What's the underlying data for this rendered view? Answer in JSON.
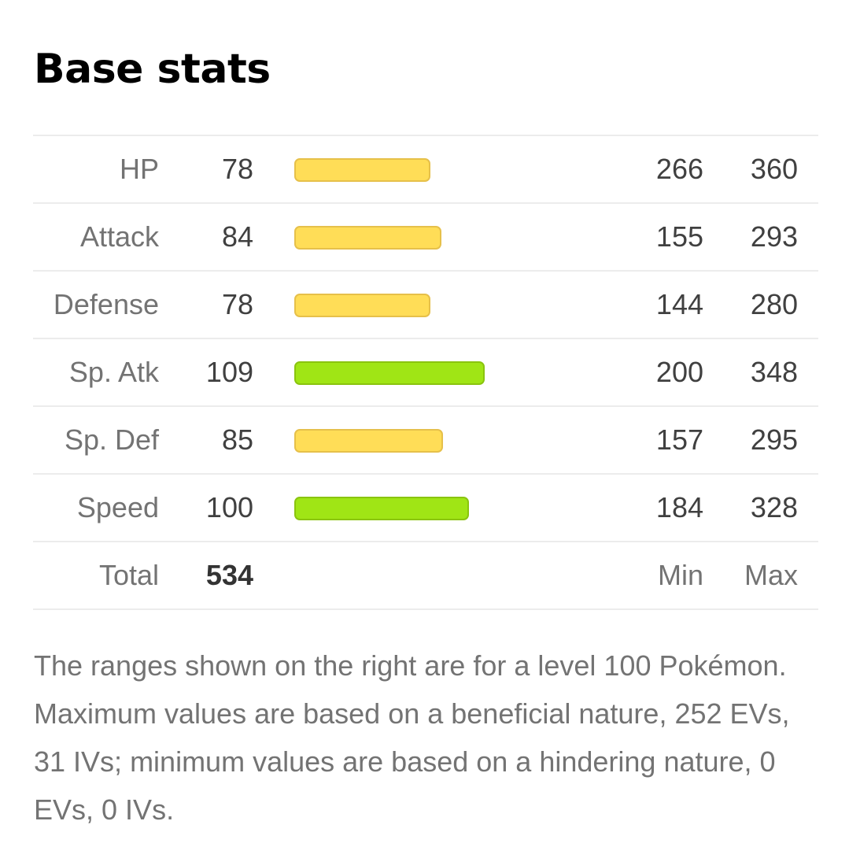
{
  "title": "Base stats",
  "bar_scale_max": 180,
  "colors": {
    "bar_medium_fill": "#ffdd57",
    "bar_medium_border": "#e6c04a",
    "bar_high_fill": "#a0e515",
    "bar_high_border": "#8ac40f"
  },
  "stats": [
    {
      "label": "HP",
      "base": "78",
      "min": "266",
      "max": "360",
      "value": 78,
      "tier": "medium"
    },
    {
      "label": "Attack",
      "base": "84",
      "min": "155",
      "max": "293",
      "value": 84,
      "tier": "medium"
    },
    {
      "label": "Defense",
      "base": "78",
      "min": "144",
      "max": "280",
      "value": 78,
      "tier": "medium"
    },
    {
      "label": "Sp. Atk",
      "base": "109",
      "min": "200",
      "max": "348",
      "value": 109,
      "tier": "high"
    },
    {
      "label": "Sp. Def",
      "base": "85",
      "min": "157",
      "max": "295",
      "value": 85,
      "tier": "medium"
    },
    {
      "label": "Speed",
      "base": "100",
      "min": "184",
      "max": "328",
      "value": 100,
      "tier": "high"
    }
  ],
  "total": {
    "label": "Total",
    "value": "534",
    "min_header": "Min",
    "max_header": "Max"
  },
  "note": "The ranges shown on the right are for a level 100 Pokémon. Maximum values are based on a beneficial nature, 252 EVs, 31 IVs; minimum values are based on a hindering nature, 0 EVs, 0 IVs."
}
